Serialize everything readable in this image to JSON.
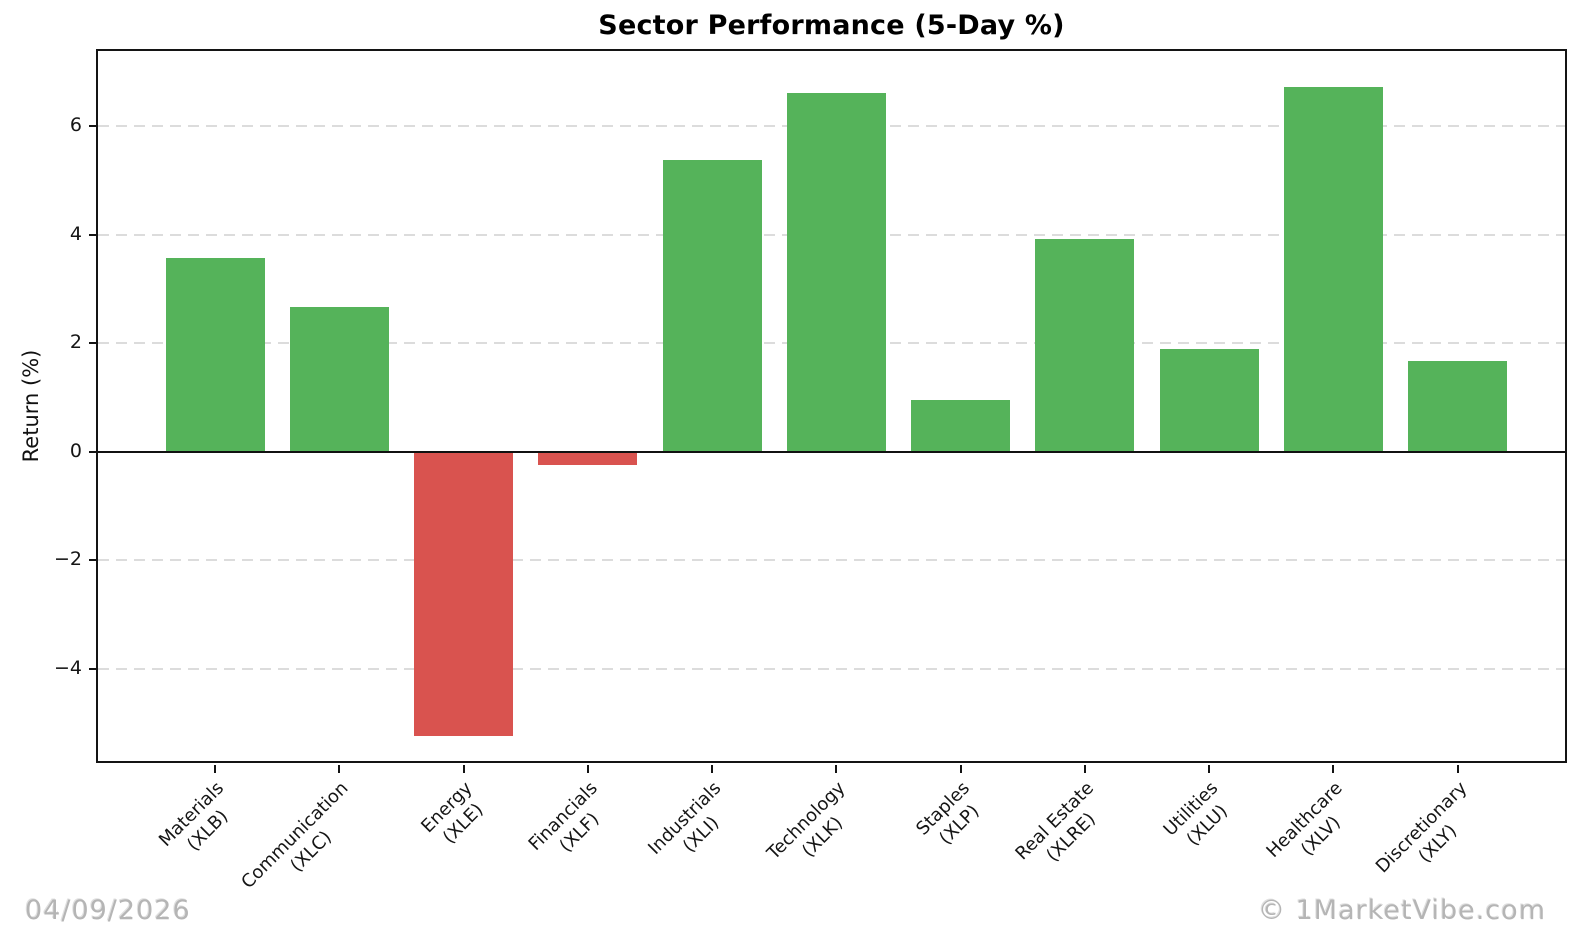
{
  "title": "Sector Performance (5-Day %)",
  "y_axis_label": "Return (%)",
  "footer": {
    "date": "04/09/2026",
    "watermark": "© 1MarketVibe.com"
  },
  "chart_data": {
    "type": "bar",
    "title": "Sector Performance (5-Day %)",
    "xlabel": "",
    "ylabel": "Return (%)",
    "ylim": [
      -5.77,
      7.38
    ],
    "grid": true,
    "legend": false,
    "yticks": [
      {
        "label": "6",
        "value": 6
      },
      {
        "label": "4",
        "value": 4
      },
      {
        "label": "2",
        "value": 2
      },
      {
        "label": "0",
        "value": 0
      },
      {
        "label": "−2",
        "value": -2
      },
      {
        "label": "−4",
        "value": -4
      }
    ],
    "categories": [
      {
        "name": "Materials",
        "ticker": "(XLB)"
      },
      {
        "name": "Communication",
        "ticker": "(XLC)"
      },
      {
        "name": "Energy",
        "ticker": "(XLE)"
      },
      {
        "name": "Financials",
        "ticker": "(XLF)"
      },
      {
        "name": "Industrials",
        "ticker": "(XLI)"
      },
      {
        "name": "Technology",
        "ticker": "(XLK)"
      },
      {
        "name": "Staples",
        "ticker": "(XLP)"
      },
      {
        "name": "Real Estate",
        "ticker": "(XLRE)"
      },
      {
        "name": "Utilities",
        "ticker": "(XLU)"
      },
      {
        "name": "Healthcare",
        "ticker": "(XLV)"
      },
      {
        "name": "Discretionary",
        "ticker": "(XLY)"
      }
    ],
    "values": [
      3.57,
      2.67,
      -5.23,
      -0.25,
      5.38,
      6.6,
      0.96,
      3.92,
      1.9,
      6.72,
      1.67
    ],
    "colors": {
      "positive": "#55b35a",
      "negative": "#d9534f",
      "grid": "#dcdcdc",
      "zero_line": "#111111",
      "watermark": "#b5b5b5"
    }
  }
}
